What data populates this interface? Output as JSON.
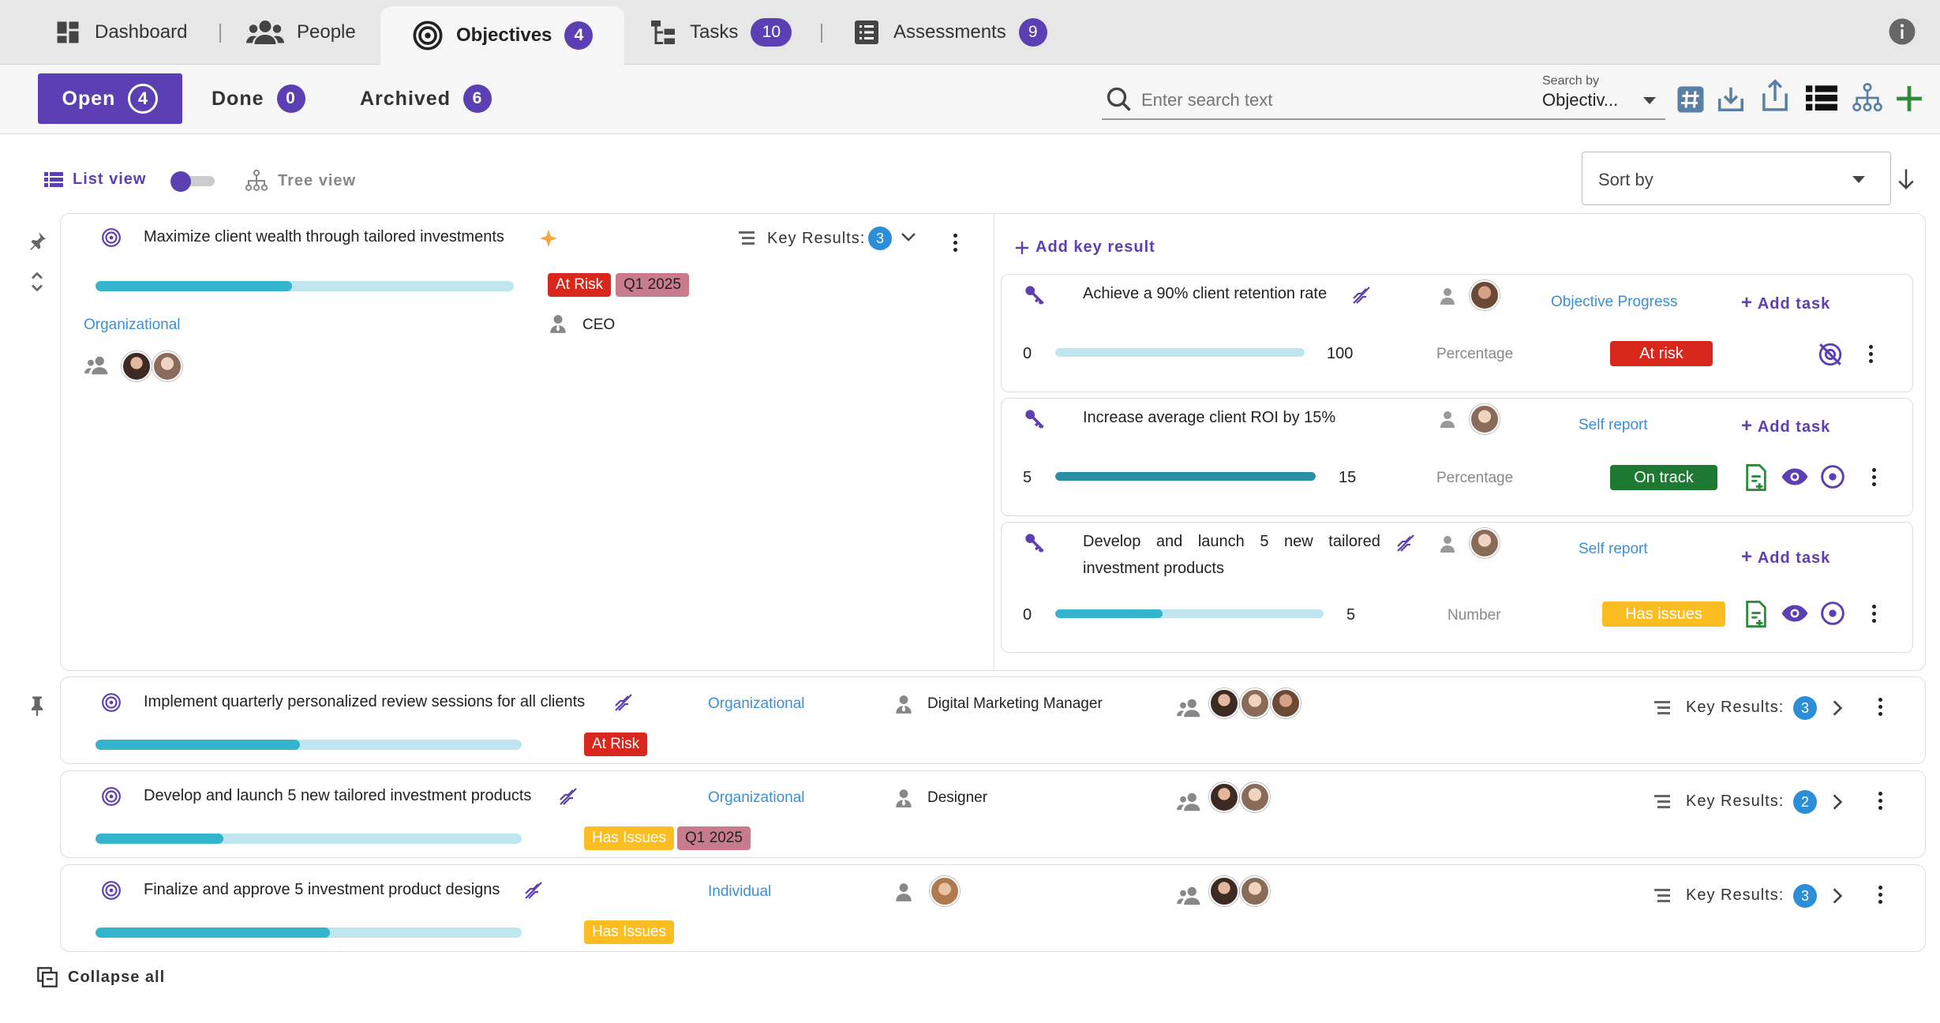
{
  "nav": {
    "tabs": [
      {
        "label": "Dashboard",
        "icon": "dashboard-icon"
      },
      {
        "label": "People",
        "icon": "people-icon"
      },
      {
        "label": "Objectives",
        "count": "4",
        "icon": "target-icon"
      },
      {
        "label": "Tasks",
        "count": "10",
        "icon": "tasks-icon"
      },
      {
        "label": "Assessments",
        "count": "9",
        "icon": "list-icon"
      }
    ],
    "info_icon": "info-icon"
  },
  "status_tabs": [
    {
      "label": "Open",
      "count": "4"
    },
    {
      "label": "Done",
      "count": "0"
    },
    {
      "label": "Archived",
      "count": "6"
    }
  ],
  "search": {
    "placeholder": "Enter search text",
    "by_label": "Search by",
    "by_value": "Objectiv..."
  },
  "view": {
    "list_label": "List view",
    "tree_label": "Tree view",
    "sort_placeholder": "Sort by"
  },
  "expanded": {
    "title": "Maximize client wealth through tailored investments",
    "progress": 0.47,
    "status": "At Risk",
    "quarter": "Q1 2025",
    "type": "Organizational",
    "owner": "CEO",
    "key_results_label": "Key Results:",
    "key_results_count": "3",
    "add_key_result": "Add key result"
  },
  "key_results": [
    {
      "title": "Achieve a 90% client retention rate",
      "start": "0",
      "end": "100",
      "progress": 0.0,
      "unit": "Percentage",
      "report": "Objective Progress",
      "status": "At risk",
      "status_color": "#d8271c",
      "add_task": "Add task"
    },
    {
      "title": "Increase average client ROI by 15%",
      "start": "5",
      "end": "15",
      "progress": 1.0,
      "unit": "Percentage",
      "report": "Self report",
      "status": "On track",
      "status_color": "#1e7a32",
      "add_task": "Add task"
    },
    {
      "title_line1": "Develop and launch 5 new tailored",
      "title_line2": "investment products",
      "start": "0",
      "end": "5",
      "progress": 0.4,
      "unit": "Number",
      "report": "Self report",
      "status": "Has issues",
      "status_color": "#fbbd22",
      "add_task": "Add task"
    }
  ],
  "objectives": [
    {
      "title": "Implement quarterly personalized review sessions for all clients",
      "progress": 0.48,
      "tags": [
        "At Risk"
      ],
      "type": "Organizational",
      "owner": "Digital Marketing Manager",
      "key_results_label": "Key Results:",
      "key_results_count": "3"
    },
    {
      "title": "Develop and launch 5 new tailored investment products",
      "progress": 0.3,
      "tags": [
        "Has Issues",
        "Q1 2025"
      ],
      "type": "Organizational",
      "owner": "Designer",
      "key_results_label": "Key Results:",
      "key_results_count": "2"
    },
    {
      "title": "Finalize and approve 5 investment product designs",
      "progress": 0.55,
      "tags": [
        "Has Issues"
      ],
      "type": "Individual",
      "owner": "",
      "key_results_label": "Key Results:",
      "key_results_count": "3"
    }
  ],
  "footer": {
    "collapse_all": "Collapse all"
  }
}
